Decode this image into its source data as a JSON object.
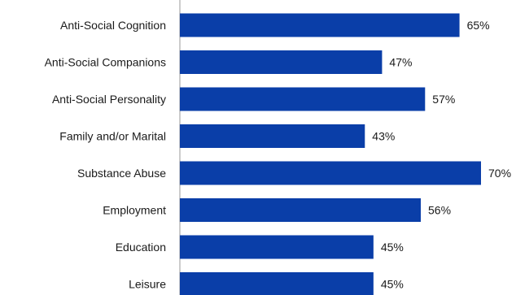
{
  "chart_data": {
    "type": "bar",
    "orientation": "horizontal",
    "categories": [
      "Anti-Social Cognition",
      "Anti-Social Companions",
      "Anti-Social Personality",
      "Family and/or Marital",
      "Substance Abuse",
      "Employment",
      "Education",
      "Leisure"
    ],
    "values": [
      65,
      47,
      57,
      43,
      70,
      56,
      45,
      45
    ],
    "value_labels": [
      "65%",
      "47%",
      "57%",
      "43%",
      "70%",
      "56%",
      "45%",
      "45%"
    ],
    "title": "",
    "xlabel": "",
    "ylabel": "",
    "xlim": [
      0,
      100
    ],
    "grid": false,
    "legend": "none",
    "bar_color": "#0a3ea8",
    "axis_color": "#9a9a9a"
  }
}
